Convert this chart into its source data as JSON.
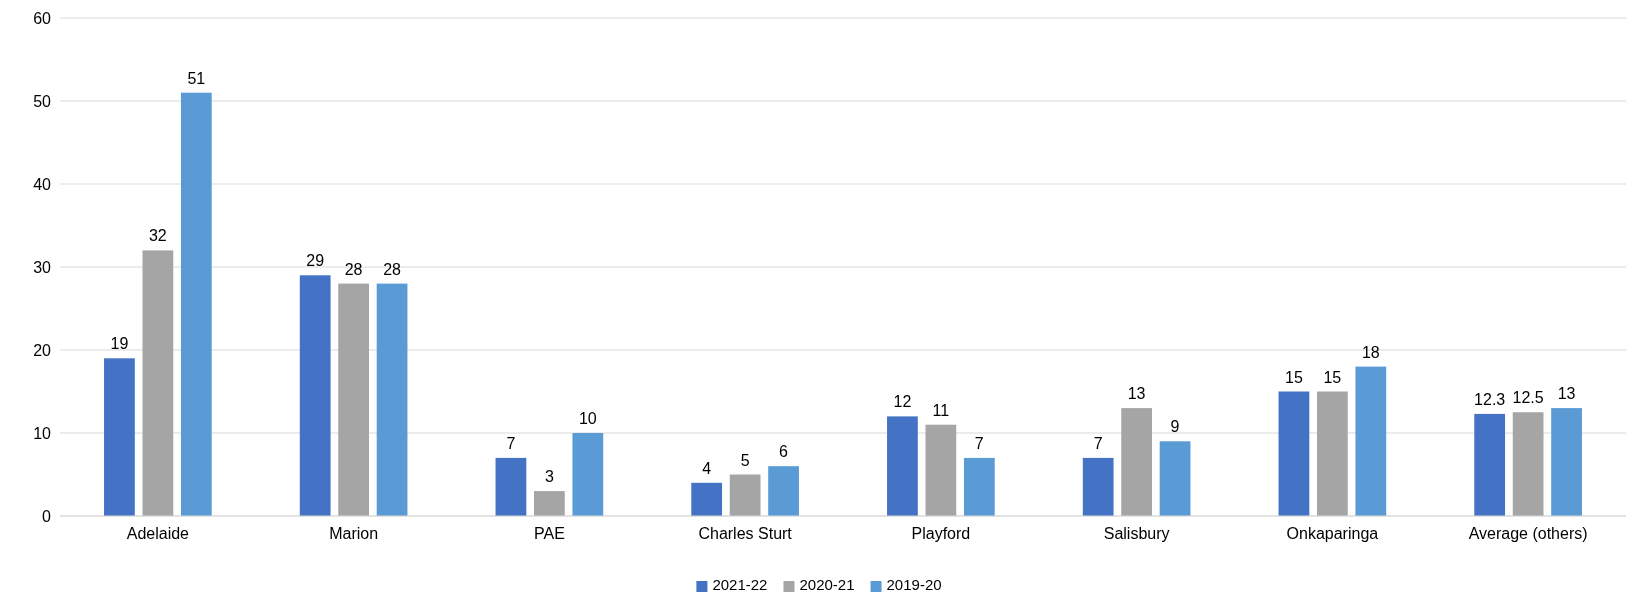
{
  "chart_data": {
    "type": "bar",
    "categories": [
      "Adelaide",
      "Marion",
      "PAE",
      "Charles Sturt",
      "Playford",
      "Salisbury",
      "Onkaparinga",
      "Average (others)"
    ],
    "series": [
      {
        "name": "2021-22",
        "color": "#4472c4",
        "values": [
          19,
          29,
          7,
          4,
          12,
          7,
          15,
          12.3
        ]
      },
      {
        "name": "2020-21",
        "color": "#a5a5a5",
        "values": [
          32,
          28,
          3,
          5,
          11,
          13,
          15,
          12.5
        ]
      },
      {
        "name": "2019-20",
        "color": "#5b9bd5",
        "values": [
          51,
          28,
          10,
          6,
          7,
          9,
          18,
          13
        ]
      }
    ],
    "ylim": [
      0,
      60
    ],
    "yticks": [
      0,
      10,
      20,
      30,
      40,
      50,
      60
    ],
    "grid": "y",
    "legend": "bottom",
    "data_labels": true
  }
}
